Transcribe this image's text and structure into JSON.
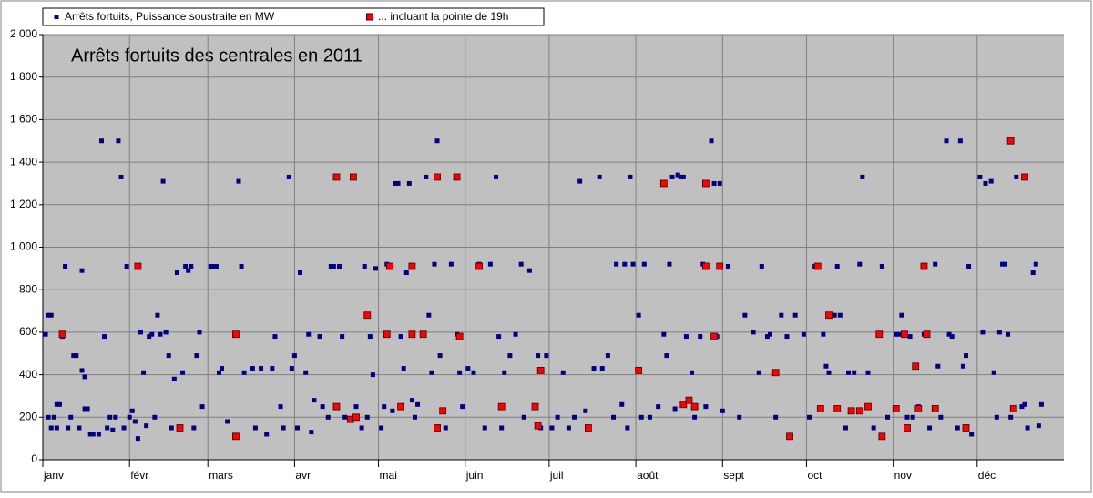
{
  "chart_data": {
    "type": "scatter",
    "title": "Arrêts fortuits des centrales en 2011",
    "xlim": [
      0,
      365
    ],
    "xticks": [
      {
        "value": 0,
        "label": "janv"
      },
      {
        "value": 31,
        "label": "févr"
      },
      {
        "value": 59,
        "label": "mars"
      },
      {
        "value": 90,
        "label": "avr"
      },
      {
        "value": 120,
        "label": "mai"
      },
      {
        "value": 151,
        "label": "juin"
      },
      {
        "value": 181,
        "label": "juil"
      },
      {
        "value": 212,
        "label": "août"
      },
      {
        "value": 243,
        "label": "sept"
      },
      {
        "value": 273,
        "label": "oct"
      },
      {
        "value": 304,
        "label": "nov"
      },
      {
        "value": 334,
        "label": "déc"
      }
    ],
    "ylim": [
      0,
      2000
    ],
    "yticks": [
      0,
      200,
      400,
      600,
      800,
      {
        "value": 1000,
        "label": "1 000"
      },
      {
        "value": 1200,
        "label": "1 200"
      },
      {
        "value": 1400,
        "label": "1 400"
      },
      {
        "value": 1600,
        "label": "1 600"
      },
      {
        "value": 1800,
        "label": "1 800"
      },
      {
        "value": 2000,
        "label": "2 000"
      }
    ],
    "grid": true,
    "series": [
      {
        "name": "Arrêts fortuits, Puissance soustraite en MW",
        "color": "#000080",
        "x": [
          1,
          2,
          3,
          2,
          3,
          4,
          5,
          5,
          6,
          7,
          8,
          9,
          10,
          11,
          12,
          13,
          14,
          15,
          14,
          15,
          16,
          17,
          18,
          20,
          21,
          22,
          23,
          24,
          25,
          26,
          27,
          28,
          29,
          30,
          31,
          32,
          33,
          34,
          35,
          36,
          37,
          38,
          39,
          40,
          41,
          42,
          43,
          44,
          45,
          46,
          47,
          48,
          50,
          51,
          52,
          53,
          54,
          55,
          56,
          57,
          60,
          61,
          62,
          63,
          64,
          66,
          70,
          71,
          72,
          75,
          76,
          78,
          80,
          82,
          83,
          85,
          86,
          88,
          89,
          90,
          91,
          92,
          94,
          95,
          96,
          97,
          99,
          100,
          102,
          103,
          104,
          106,
          107,
          108,
          111,
          112,
          114,
          115,
          116,
          117,
          118,
          119,
          121,
          122,
          123,
          125,
          126,
          127,
          128,
          129,
          130,
          131,
          132,
          133,
          134,
          136,
          137,
          138,
          139,
          140,
          141,
          142,
          144,
          146,
          148,
          149,
          150,
          152,
          154,
          156,
          158,
          160,
          162,
          163,
          164,
          165,
          167,
          169,
          171,
          172,
          174,
          177,
          178,
          180,
          182,
          184,
          186,
          188,
          190,
          192,
          194,
          197,
          199,
          200,
          202,
          204,
          205,
          207,
          208,
          209,
          210,
          211,
          213,
          214,
          215,
          217,
          220,
          222,
          223,
          224,
          225,
          226,
          227,
          228,
          229,
          230,
          232,
          233,
          235,
          236,
          237,
          239,
          240,
          241,
          242,
          243,
          245,
          249,
          251,
          254,
          256,
          257,
          259,
          260,
          262,
          264,
          266,
          269,
          272,
          274,
          276,
          277,
          279,
          280,
          281,
          283,
          284,
          285,
          287,
          288,
          290,
          292,
          293,
          295,
          297,
          300,
          302,
          305,
          306,
          307,
          309,
          310,
          311,
          313,
          315,
          317,
          319,
          320,
          321,
          323,
          324,
          325,
          327,
          328,
          329,
          330,
          331,
          332,
          335,
          336,
          337,
          339,
          340,
          341,
          342,
          343,
          344,
          345,
          346,
          348,
          350,
          351,
          352,
          354,
          355,
          356,
          357
        ],
        "values": [
          590,
          680,
          680,
          200,
          150,
          200,
          150,
          260,
          260,
          580,
          910,
          150,
          200,
          490,
          490,
          150,
          420,
          390,
          890,
          240,
          240,
          120,
          120,
          120,
          1500,
          580,
          150,
          200,
          140,
          200,
          1500,
          1330,
          150,
          910,
          200,
          230,
          180,
          100,
          600,
          410,
          160,
          580,
          590,
          200,
          680,
          590,
          1310,
          600,
          490,
          150,
          380,
          880,
          410,
          910,
          890,
          910,
          150,
          490,
          600,
          250,
          910,
          910,
          910,
          410,
          430,
          180,
          1310,
          910,
          410,
          430,
          150,
          430,
          120,
          430,
          580,
          250,
          150,
          1330,
          430,
          490,
          150,
          880,
          410,
          590,
          130,
          280,
          580,
          250,
          200,
          910,
          910,
          910,
          580,
          200,
          1330,
          250,
          150,
          910,
          200,
          580,
          400,
          900,
          150,
          250,
          920,
          230,
          1300,
          1300,
          580,
          430,
          880,
          1300,
          280,
          200,
          260,
          590,
          1330,
          680,
          410,
          920,
          1500,
          490,
          150,
          920,
          590,
          410,
          250,
          430,
          410,
          920,
          150,
          920,
          1330,
          580,
          150,
          410,
          490,
          590,
          920,
          200,
          890,
          490,
          150,
          490,
          150,
          200,
          410,
          150,
          200,
          1310,
          230,
          430,
          1330,
          430,
          490,
          200,
          920,
          260,
          920,
          150,
          1330,
          920,
          680,
          200,
          920,
          200,
          250,
          590,
          490,
          920,
          1330,
          240,
          1340,
          1330,
          1330,
          580,
          410,
          200,
          580,
          920,
          250,
          1500,
          1300,
          580,
          1300,
          230,
          910,
          200,
          680,
          600,
          410,
          910,
          580,
          590,
          200,
          680,
          580,
          680,
          590,
          200,
          910,
          910,
          590,
          440,
          410,
          680,
          910,
          680,
          150,
          410,
          410,
          920,
          1330,
          410,
          150,
          910,
          200,
          590,
          590,
          680,
          200,
          580,
          200,
          250,
          590,
          150,
          920,
          440,
          200,
          1500,
          590,
          580,
          150,
          1500,
          440,
          490,
          910,
          120,
          1330,
          600,
          1300,
          1310,
          410,
          200,
          600,
          920,
          920,
          590,
          200,
          1330,
          250,
          260,
          150,
          880,
          920,
          160,
          260
        ]
      },
      {
        "name": "... incluant la pointe de 19h",
        "color": "#ff0000",
        "x": [
          7,
          34,
          49,
          69,
          69,
          105,
          105,
          111,
          110,
          112,
          116,
          123,
          124,
          128,
          132,
          132,
          136,
          141,
          141,
          143,
          148,
          149,
          156,
          164,
          176,
          177,
          178,
          195,
          213,
          222,
          229,
          231,
          233,
          237,
          237,
          240,
          242,
          262,
          267,
          277,
          278,
          281,
          284,
          289,
          292,
          295,
          299,
          300,
          305,
          308,
          309,
          312,
          313,
          315,
          316,
          319,
          330,
          346,
          347,
          351
        ],
        "values": [
          590,
          910,
          150,
          590,
          110,
          250,
          1330,
          1330,
          190,
          200,
          680,
          590,
          910,
          250,
          910,
          590,
          590,
          1330,
          150,
          230,
          1330,
          580,
          910,
          250,
          250,
          160,
          420,
          150,
          420,
          1300,
          260,
          280,
          250,
          910,
          1300,
          580,
          910,
          410,
          110,
          910,
          240,
          680,
          240,
          230,
          230,
          250,
          590,
          110,
          240,
          590,
          150,
          440,
          240,
          910,
          590,
          240,
          150,
          1500,
          240,
          1330
        ]
      }
    ]
  }
}
